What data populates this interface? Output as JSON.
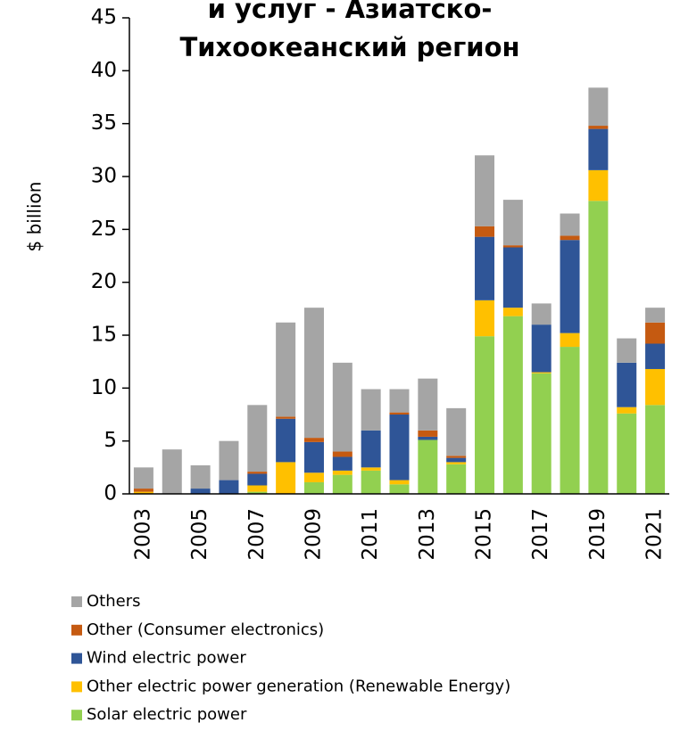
{
  "chart_data": {
    "type": "stacked_bar",
    "title_lines": [
      "и услуг - Азиатско-",
      "Тихоокеанский регион"
    ],
    "ylabel": "$ billion",
    "categories": [
      "2003",
      null,
      "2005",
      null,
      "2007",
      null,
      "2009",
      null,
      "2011",
      null,
      "2013",
      null,
      "2015",
      null,
      "2017",
      null,
      "2019",
      null,
      "2021"
    ],
    "series": [
      {
        "name": "Solar electric power",
        "color": "#92d050",
        "values": [
          0,
          0,
          0,
          0,
          0.2,
          0,
          1.1,
          1.8,
          2.2,
          0.9,
          5.1,
          2.8,
          14.9,
          16.8,
          11.4,
          13.9,
          27.7,
          7.6,
          8.4
        ]
      },
      {
        "name": "Other electric power generation (Renewable Energy)",
        "color": "#ffc000",
        "values": [
          0.2,
          0,
          0,
          0,
          0.6,
          3.0,
          0.9,
          0.4,
          0.3,
          0.4,
          0,
          0.2,
          3.4,
          0.8,
          0.1,
          1.3,
          2.9,
          0.6,
          3.4
        ]
      },
      {
        "name": "Wind electric power",
        "color": "#2f5597",
        "values": [
          0,
          0,
          0.5,
          1.3,
          1.1,
          4.1,
          2.9,
          1.3,
          3.5,
          6.2,
          0.3,
          0.4,
          6.0,
          5.7,
          4.5,
          8.8,
          3.9,
          4.2,
          2.4
        ]
      },
      {
        "name": "Other (Consumer electronics)",
        "color": "#c55a11",
        "values": [
          0.3,
          0,
          0,
          0,
          0.2,
          0.2,
          0.4,
          0.5,
          0,
          0.2,
          0.6,
          0.2,
          1.0,
          0.2,
          0,
          0.4,
          0.3,
          0,
          2.0
        ]
      },
      {
        "name": "Others",
        "color": "#a5a5a5",
        "values": [
          2.0,
          4.2,
          2.2,
          3.7,
          6.3,
          8.9,
          12.3,
          8.4,
          3.9,
          2.2,
          4.9,
          4.5,
          6.7,
          4.3,
          2.0,
          2.1,
          3.6,
          2.3,
          1.4
        ]
      }
    ],
    "ylim": [
      0,
      45
    ],
    "yticks": [
      0,
      5,
      10,
      15,
      20,
      25,
      30,
      35,
      40,
      45
    ],
    "legend": "bottom"
  }
}
